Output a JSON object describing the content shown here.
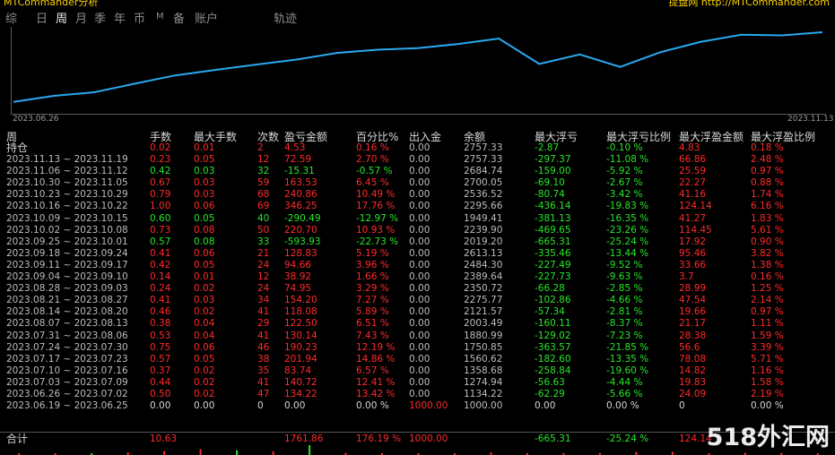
{
  "topbar": {
    "left": "MTCommander分析",
    "right": "提盘网 http://MTCommander.com"
  },
  "tabs": [
    {
      "label": "综",
      "active": false
    },
    {
      "label": "日",
      "active": false
    },
    {
      "label": "周",
      "active": true
    },
    {
      "label": "月",
      "active": false
    },
    {
      "label": "季",
      "active": false
    },
    {
      "label": "年",
      "active": false
    },
    {
      "label": "币",
      "active": false
    },
    {
      "label": "M",
      "active": false
    },
    {
      "label": "备",
      "active": false
    },
    {
      "label": "账户",
      "active": false
    },
    {
      "label": "轨迹",
      "active": false
    }
  ],
  "chart_data": {
    "type": "line",
    "x": [
      "2023.06.26",
      "2023.07.03",
      "2023.07.10",
      "2023.07.17",
      "2023.07.24",
      "2023.07.31",
      "2023.08.07",
      "2023.08.14",
      "2023.08.21",
      "2023.08.28",
      "2023.09.04",
      "2023.09.11",
      "2023.09.18",
      "2023.09.25",
      "2023.10.02",
      "2023.10.09",
      "2023.10.16",
      "2023.10.23",
      "2023.10.30",
      "2023.11.06",
      "2023.11.13"
    ],
    "values": [
      1134.22,
      1274.94,
      1358.68,
      1560.62,
      1750.85,
      1880.99,
      2003.49,
      2121.57,
      2275.77,
      2350.72,
      2389.64,
      2484.3,
      2613.13,
      2019.2,
      2239.9,
      1949.41,
      2295.66,
      2536.52,
      2700.05,
      2684.74,
      2757.33
    ],
    "xlabel_start": "2023.06.26",
    "xlabel_end": "2023.11.13",
    "ylim": [
      900,
      2800
    ],
    "line_color": "#2aa8f0"
  },
  "headers": [
    "周",
    "手数",
    "最大手数",
    "次数",
    "盈亏金额",
    "百分比%",
    "出入金",
    "余额",
    "最大浮亏",
    "最大浮亏比例",
    "最大浮盈金额",
    "最大浮盈比例"
  ],
  "rows": [
    {
      "period": "持仓",
      "lots": "0.02",
      "maxlots": "0.01",
      "count": "2",
      "pnl": "4.53",
      "pct": "0.16 %",
      "io": "0.00",
      "bal": "2757.33",
      "mdd": "-2.87",
      "mddp": "-0.10 %",
      "mfe": "4.83",
      "mfep": "0.18 %",
      "tone": "red"
    },
    {
      "period": "2023.11.13 ~ 2023.11.19",
      "lots": "0.23",
      "maxlots": "0.05",
      "count": "12",
      "pnl": "72.59",
      "pct": "2.70 %",
      "io": "0.00",
      "bal": "2757.33",
      "mdd": "-297.37",
      "mddp": "-11.08 %",
      "mfe": "66.86",
      "mfep": "2.48 %",
      "tone": "red"
    },
    {
      "period": "2023.11.06 ~ 2023.11.12",
      "lots": "0.42",
      "maxlots": "0.03",
      "count": "32",
      "pnl": "-15.31",
      "pct": "-0.57 %",
      "io": "0.00",
      "bal": "2684.74",
      "mdd": "-159.00",
      "mddp": "-5.92 %",
      "mfe": "25.59",
      "mfep": "0.97 %",
      "tone": "green"
    },
    {
      "period": "2023.10.30 ~ 2023.11.05",
      "lots": "0.67",
      "maxlots": "0.03",
      "count": "59",
      "pnl": "163.53",
      "pct": "6.45 %",
      "io": "0.00",
      "bal": "2700.05",
      "mdd": "-69.10",
      "mddp": "-2.67 %",
      "mfe": "22.27",
      "mfep": "0.88 %",
      "tone": "red"
    },
    {
      "period": "2023.10.23 ~ 2023.10.29",
      "lots": "0.79",
      "maxlots": "0.03",
      "count": "68",
      "pnl": "240.86",
      "pct": "10.49 %",
      "io": "0.00",
      "bal": "2536.52",
      "mdd": "-80.74",
      "mddp": "-3.42 %",
      "mfe": "41.16",
      "mfep": "1.74 %",
      "tone": "red"
    },
    {
      "period": "2023.10.16 ~ 2023.10.22",
      "lots": "1.00",
      "maxlots": "0.06",
      "count": "69",
      "pnl": "346.25",
      "pct": "17.76 %",
      "io": "0.00",
      "bal": "2295.66",
      "mdd": "-436.14",
      "mddp": "-19.83 %",
      "mfe": "124.14",
      "mfep": "6.16 %",
      "tone": "red"
    },
    {
      "period": "2023.10.09 ~ 2023.10.15",
      "lots": "0.60",
      "maxlots": "0.05",
      "count": "40",
      "pnl": "-290.49",
      "pct": "-12.97 %",
      "io": "0.00",
      "bal": "1949.41",
      "mdd": "-381.13",
      "mddp": "-16.35 %",
      "mfe": "41.27",
      "mfep": "1.83 %",
      "tone": "green"
    },
    {
      "period": "2023.10.02 ~ 2023.10.08",
      "lots": "0.73",
      "maxlots": "0.08",
      "count": "50",
      "pnl": "220.70",
      "pct": "10.93 %",
      "io": "0.00",
      "bal": "2239.90",
      "mdd": "-469.65",
      "mddp": "-23.26 %",
      "mfe": "114.45",
      "mfep": "5.61 %",
      "tone": "red"
    },
    {
      "period": "2023.09.25 ~ 2023.10.01",
      "lots": "0.57",
      "maxlots": "0.08",
      "count": "33",
      "pnl": "-593.93",
      "pct": "-22.73 %",
      "io": "0.00",
      "bal": "2019.20",
      "mdd": "-665.31",
      "mddp": "-25.24 %",
      "mfe": "17.92",
      "mfep": "0.90 %",
      "tone": "green"
    },
    {
      "period": "2023.09.18 ~ 2023.09.24",
      "lots": "0.41",
      "maxlots": "0.06",
      "count": "21",
      "pnl": "128.83",
      "pct": "5.19 %",
      "io": "0.00",
      "bal": "2613.13",
      "mdd": "-335.46",
      "mddp": "-13.44 %",
      "mfe": "95.46",
      "mfep": "3.82 %",
      "tone": "red"
    },
    {
      "period": "2023.09.11 ~ 2023.09.17",
      "lots": "0.42",
      "maxlots": "0.05",
      "count": "24",
      "pnl": "94.66",
      "pct": "3.96 %",
      "io": "0.00",
      "bal": "2484.30",
      "mdd": "-227.49",
      "mddp": "-9.52 %",
      "mfe": "33.66",
      "mfep": "1.38 %",
      "tone": "red"
    },
    {
      "period": "2023.09.04 ~ 2023.09.10",
      "lots": "0.14",
      "maxlots": "0.01",
      "count": "12",
      "pnl": "38.92",
      "pct": "1.66 %",
      "io": "0.00",
      "bal": "2389.64",
      "mdd": "-227.73",
      "mddp": "-9.63 %",
      "mfe": "3.7",
      "mfep": "0.16 %",
      "tone": "red"
    },
    {
      "period": "2023.08.28 ~ 2023.09.03",
      "lots": "0.24",
      "maxlots": "0.02",
      "count": "24",
      "pnl": "74.95",
      "pct": "3.29 %",
      "io": "0.00",
      "bal": "2350.72",
      "mdd": "-66.28",
      "mddp": "-2.85 %",
      "mfe": "28.99",
      "mfep": "1.25 %",
      "tone": "red"
    },
    {
      "period": "2023.08.21 ~ 2023.08.27",
      "lots": "0.41",
      "maxlots": "0.03",
      "count": "34",
      "pnl": "154.20",
      "pct": "7.27 %",
      "io": "0.00",
      "bal": "2275.77",
      "mdd": "-102.86",
      "mddp": "-4.66 %",
      "mfe": "47.54",
      "mfep": "2.14 %",
      "tone": "red"
    },
    {
      "period": "2023.08.14 ~ 2023.08.20",
      "lots": "0.46",
      "maxlots": "0.02",
      "count": "41",
      "pnl": "118.08",
      "pct": "5.89 %",
      "io": "0.00",
      "bal": "2121.57",
      "mdd": "-57.34",
      "mddp": "-2.81 %",
      "mfe": "19.66",
      "mfep": "0.97 %",
      "tone": "red"
    },
    {
      "period": "2023.08.07 ~ 2023.08.13",
      "lots": "0.38",
      "maxlots": "0.04",
      "count": "29",
      "pnl": "122.50",
      "pct": "6.51 %",
      "io": "0.00",
      "bal": "2003.49",
      "mdd": "-160.11",
      "mddp": "-8.37 %",
      "mfe": "21.17",
      "mfep": "1.11 %",
      "tone": "red"
    },
    {
      "period": "2023.07.31 ~ 2023.08.06",
      "lots": "0.53",
      "maxlots": "0.04",
      "count": "41",
      "pnl": "130.14",
      "pct": "7.43 %",
      "io": "0.00",
      "bal": "1880.99",
      "mdd": "-129.02",
      "mddp": "-7.23 %",
      "mfe": "28.38",
      "mfep": "1.59 %",
      "tone": "red"
    },
    {
      "period": "2023.07.24 ~ 2023.07.30",
      "lots": "0.75",
      "maxlots": "0.06",
      "count": "46",
      "pnl": "190.23",
      "pct": "12.19 %",
      "io": "0.00",
      "bal": "1750.85",
      "mdd": "-363.57",
      "mddp": "-21.85 %",
      "mfe": "56.6",
      "mfep": "3.39 %",
      "tone": "red"
    },
    {
      "period": "2023.07.17 ~ 2023.07.23",
      "lots": "0.57",
      "maxlots": "0.05",
      "count": "38",
      "pnl": "201.94",
      "pct": "14.86 %",
      "io": "0.00",
      "bal": "1560.62",
      "mdd": "-182.60",
      "mddp": "-13.35 %",
      "mfe": "78.08",
      "mfep": "5.71 %",
      "tone": "red"
    },
    {
      "period": "2023.07.10 ~ 2023.07.16",
      "lots": "0.37",
      "maxlots": "0.02",
      "count": "35",
      "pnl": "83.74",
      "pct": "6.57 %",
      "io": "0.00",
      "bal": "1358.68",
      "mdd": "-258.84",
      "mddp": "-19.60 %",
      "mfe": "14.82",
      "mfep": "1.16 %",
      "tone": "red"
    },
    {
      "period": "2023.07.03 ~ 2023.07.09",
      "lots": "0.44",
      "maxlots": "0.02",
      "count": "41",
      "pnl": "140.72",
      "pct": "12.41 %",
      "io": "0.00",
      "bal": "1274.94",
      "mdd": "-56.63",
      "mddp": "-4.44 %",
      "mfe": "19.83",
      "mfep": "1.58 %",
      "tone": "red"
    },
    {
      "period": "2023.06.26 ~ 2023.07.02",
      "lots": "0.50",
      "maxlots": "0.02",
      "count": "47",
      "pnl": "134.22",
      "pct": "13.42 %",
      "io": "0.00",
      "bal": "1134.22",
      "mdd": "-62.29",
      "mddp": "-5.66 %",
      "mfe": "24.09",
      "mfep": "2.19 %",
      "tone": "red"
    },
    {
      "period": "2023.06.19 ~ 2023.06.25",
      "lots": "0.00",
      "maxlots": "0.00",
      "count": "0",
      "pnl": "0.00",
      "pct": "0.00 %",
      "io": "1000.00",
      "bal": "1000.00",
      "mdd": "0.00",
      "mddp": "0.00 %",
      "mfe": "0",
      "mfep": "0.00 %",
      "tone": "white"
    }
  ],
  "total": {
    "label": "合计",
    "lots": "10.63",
    "pnl": "1761.86",
    "pct": "176.19 %",
    "io": "1000.00",
    "mdd": "-665.31",
    "mddp": "-25.24 %",
    "mfe": "124.14"
  },
  "watermark": "518外汇网",
  "colors": {
    "profit": "#ff2a2a",
    "loss": "#28e628",
    "line": "#2aa8f0"
  }
}
